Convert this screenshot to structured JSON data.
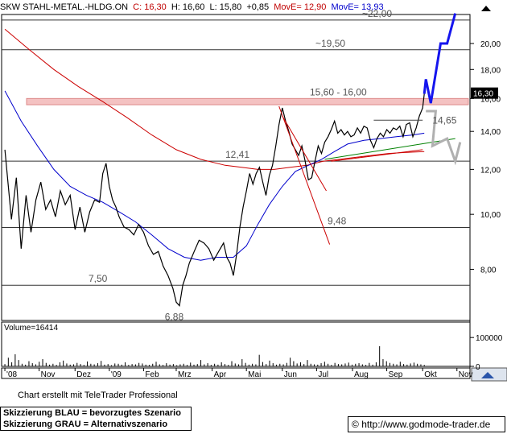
{
  "header": {
    "symbol": "SKW STAHL-METAL.-HLDG.ON",
    "close_label": "C:",
    "close": "16,30",
    "high_label": "H:",
    "high": "16,60",
    "low_label": "L:",
    "low": "15,80",
    "change": "+0,85",
    "ma1_label": "MovE=",
    "ma1": "12,90",
    "ma2_label": "MovE=",
    "ma2": "13,93"
  },
  "footer": {
    "credit": "Chart erstellt mit TeleTrader Professional",
    "legend_blue": "Skizzierung BLAU = bevorzugtes Szenario",
    "legend_grey": "Skizzierung GRAU = Alternativszenario",
    "url": "http://www.godmode-trader.de"
  },
  "colors": {
    "price": "#000000",
    "ma_fast": "#0000cc",
    "ma_slow": "#cc0000",
    "resistance_zone": "#f4c2c2",
    "scenario_blue": "#1515ee",
    "scenario_grey": "#b0b0b0",
    "trend_green": "#008000",
    "trend_red": "#cc0000",
    "hline": "#333333"
  },
  "chart_data": {
    "type": "line",
    "title": "SKW STAHL-METAL.-HLDG.ON",
    "scale": "log",
    "ylim": [
      6.5,
      22.5
    ],
    "y_ticks": [
      8,
      10,
      12,
      14,
      16,
      18,
      20
    ],
    "y_tick_labels": [
      "8,00",
      "10,00",
      "12,00",
      "14,00",
      "16,00",
      "18,00",
      "20,00"
    ],
    "last_price_label": "16,30",
    "x_tick_labels": [
      "'08",
      "Nov",
      "Dez",
      "'09",
      "Feb",
      "Mrz",
      "Apr",
      "Mai",
      "Jun",
      "Jul",
      "Aug",
      "Sep",
      "Okt",
      "Nov"
    ],
    "x_ticks_index": [
      0,
      21,
      43,
      64,
      85,
      105,
      127,
      148,
      170,
      191,
      213,
      234,
      256,
      277
    ],
    "price_series": [
      [
        0,
        13.0
      ],
      [
        4,
        9.8
      ],
      [
        7,
        11.6
      ],
      [
        10,
        8.7
      ],
      [
        13,
        10.8
      ],
      [
        16,
        9.3
      ],
      [
        19,
        10.6
      ],
      [
        22,
        11.4
      ],
      [
        25,
        10.2
      ],
      [
        28,
        10.6
      ],
      [
        31,
        9.9
      ],
      [
        34,
        11.0
      ],
      [
        37,
        10.4
      ],
      [
        40,
        10.8
      ],
      [
        43,
        9.4
      ],
      [
        46,
        10.3
      ],
      [
        49,
        9.3
      ],
      [
        52,
        10.1
      ],
      [
        55,
        10.6
      ],
      [
        58,
        10.5
      ],
      [
        60,
        11.8
      ],
      [
        62,
        12.3
      ],
      [
        64,
        11.2
      ],
      [
        66,
        10.6
      ],
      [
        68,
        10.3
      ],
      [
        70,
        9.9
      ],
      [
        73,
        9.5
      ],
      [
        76,
        9.4
      ],
      [
        79,
        9.2
      ],
      [
        82,
        9.6
      ],
      [
        85,
        9.3
      ],
      [
        88,
        8.8
      ],
      [
        91,
        8.5
      ],
      [
        94,
        8.6
      ],
      [
        97,
        8.1
      ],
      [
        100,
        7.8
      ],
      [
        103,
        7.4
      ],
      [
        105,
        7.0
      ],
      [
        107,
        6.9
      ],
      [
        109,
        7.5
      ],
      [
        111,
        7.8
      ],
      [
        113,
        8.2
      ],
      [
        116,
        8.6
      ],
      [
        119,
        9.0
      ],
      [
        122,
        8.9
      ],
      [
        125,
        8.7
      ],
      [
        128,
        8.3
      ],
      [
        131,
        8.6
      ],
      [
        134,
        8.9
      ],
      [
        136,
        8.4
      ],
      [
        138,
        8.2
      ],
      [
        140,
        7.8
      ],
      [
        142,
        8.5
      ],
      [
        144,
        9.5
      ],
      [
        146,
        10.3
      ],
      [
        148,
        11.0
      ],
      [
        150,
        11.8
      ],
      [
        152,
        11.3
      ],
      [
        154,
        11.8
      ],
      [
        156,
        12.1
      ],
      [
        158,
        11.4
      ],
      [
        160,
        10.8
      ],
      [
        162,
        11.7
      ],
      [
        164,
        12.2
      ],
      [
        166,
        13.2
      ],
      [
        168,
        14.4
      ],
      [
        170,
        15.4
      ],
      [
        172,
        14.6
      ],
      [
        174,
        14.0
      ],
      [
        176,
        13.3
      ],
      [
        178,
        13.0
      ],
      [
        180,
        12.7
      ],
      [
        182,
        13.2
      ],
      [
        184,
        12.4
      ],
      [
        186,
        11.5
      ],
      [
        188,
        11.6
      ],
      [
        190,
        12.4
      ],
      [
        192,
        13.2
      ],
      [
        194,
        12.8
      ],
      [
        196,
        13.4
      ],
      [
        198,
        13.7
      ],
      [
        200,
        14.1
      ],
      [
        202,
        14.6
      ],
      [
        204,
        13.9
      ],
      [
        206,
        14.1
      ],
      [
        208,
        13.8
      ],
      [
        210,
        14.0
      ],
      [
        212,
        13.7
      ],
      [
        214,
        13.8
      ],
      [
        216,
        14.2
      ],
      [
        218,
        13.9
      ],
      [
        220,
        14.3
      ],
      [
        222,
        14.2
      ],
      [
        224,
        13.5
      ],
      [
        226,
        13.1
      ],
      [
        228,
        13.6
      ],
      [
        230,
        13.9
      ],
      [
        232,
        13.7
      ],
      [
        234,
        14.1
      ],
      [
        236,
        13.9
      ],
      [
        238,
        14.2
      ],
      [
        240,
        14.1
      ],
      [
        242,
        14.3
      ],
      [
        244,
        13.7
      ],
      [
        246,
        14.4
      ],
      [
        248,
        14.5
      ],
      [
        250,
        13.7
      ],
      [
        252,
        14.2
      ],
      [
        254,
        14.9
      ],
      [
        256,
        15.4
      ],
      [
        257,
        16.3
      ]
    ],
    "ma_fast_series": [
      [
        0,
        16.5
      ],
      [
        10,
        14.6
      ],
      [
        20,
        13.2
      ],
      [
        30,
        12.0
      ],
      [
        40,
        11.2
      ],
      [
        50,
        10.8
      ],
      [
        60,
        10.5
      ],
      [
        70,
        10.1
      ],
      [
        80,
        9.7
      ],
      [
        90,
        9.2
      ],
      [
        100,
        8.7
      ],
      [
        110,
        8.4
      ],
      [
        120,
        8.3
      ],
      [
        130,
        8.4
      ],
      [
        140,
        8.4
      ],
      [
        148,
        8.8
      ],
      [
        155,
        9.6
      ],
      [
        162,
        10.4
      ],
      [
        170,
        11.2
      ],
      [
        178,
        11.9
      ],
      [
        186,
        12.2
      ],
      [
        194,
        12.5
      ],
      [
        202,
        12.9
      ],
      [
        210,
        13.3
      ],
      [
        220,
        13.5
      ],
      [
        230,
        13.6
      ],
      [
        240,
        13.7
      ],
      [
        250,
        13.8
      ],
      [
        257,
        13.9
      ]
    ],
    "ma_slow_series": [
      [
        0,
        21.2
      ],
      [
        15,
        19.5
      ],
      [
        30,
        18.0
      ],
      [
        45,
        16.8
      ],
      [
        60,
        15.8
      ],
      [
        75,
        14.8
      ],
      [
        90,
        13.8
      ],
      [
        105,
        13.0
      ],
      [
        120,
        12.5
      ],
      [
        135,
        12.2
      ],
      [
        145,
        12.1
      ],
      [
        155,
        12.0
      ],
      [
        165,
        12.0
      ],
      [
        175,
        12.1
      ],
      [
        185,
        12.2
      ],
      [
        195,
        12.4
      ],
      [
        205,
        12.5
      ],
      [
        215,
        12.6
      ],
      [
        225,
        12.7
      ],
      [
        235,
        12.8
      ],
      [
        245,
        12.85
      ],
      [
        257,
        12.9
      ]
    ],
    "volume_ticks": [
      0,
      100000
    ],
    "volume_tick_labels": [
      "0",
      "100000"
    ],
    "volume_label": "Volume=16414",
    "volume_series": [
      8000,
      30000,
      14000,
      42000,
      22000,
      9000,
      6000,
      18000,
      11000,
      7000,
      16000,
      25000,
      12000,
      6000,
      9000,
      5000,
      14000,
      20000,
      10000,
      6000,
      7000,
      12000,
      8000,
      5000,
      17000,
      9000,
      7000,
      11000,
      19000,
      6000,
      8000,
      4000,
      10000,
      9000,
      6000,
      14000,
      5000,
      8000,
      7000,
      12000,
      10000,
      6000,
      5000,
      9000,
      16000,
      7000,
      5000,
      11000,
      6000,
      8000,
      4000,
      7000,
      9000,
      5000,
      13000,
      6000,
      8000,
      22000,
      7000,
      11000,
      5000,
      9000,
      6000,
      14000,
      8000,
      5000,
      18000,
      10000,
      7000,
      25000,
      12000,
      6000,
      9000,
      7000,
      40000,
      15000,
      8000,
      20000,
      11000,
      6000,
      9000,
      7000,
      12000,
      30000,
      18000,
      10000,
      14000,
      8000,
      22000,
      9000,
      7000,
      6000,
      11000,
      16000,
      9000,
      5000,
      12000,
      8000,
      7000,
      10000,
      13000,
      6000,
      9000,
      11000,
      7000,
      5000,
      12000,
      6000,
      14000,
      70000,
      25000,
      18000,
      12000,
      9000,
      7000,
      16000,
      8000,
      6000,
      10000,
      13000,
      9000,
      7000,
      5000
    ],
    "horizontal_levels": [
      {
        "value": 22.0,
        "label": "~22,00"
      },
      {
        "value": 19.5,
        "label": "~19,50"
      },
      {
        "value": 12.41,
        "label": "12,41"
      },
      {
        "value": 9.48,
        "label": "9,48"
      },
      {
        "value": 7.5,
        "label": "7,50"
      }
    ],
    "zone": {
      "low": 15.6,
      "high": 16.0,
      "label": "15,60 - 16,00"
    },
    "annotations": [
      {
        "text": "14,65",
        "x": 262,
        "y": 14.65
      },
      {
        "text": "6,88",
        "x": 98,
        "y": 6.6
      }
    ],
    "trend_lines": [
      {
        "color": "red",
        "points": [
          [
            168,
            15.5
          ],
          [
            199,
            8.85
          ]
        ]
      },
      {
        "color": "red",
        "points": [
          [
            170,
            14.9
          ],
          [
            197,
            11.0
          ]
        ]
      },
      {
        "color": "green",
        "points": [
          [
            196,
            12.5
          ],
          [
            276,
            13.6
          ]
        ]
      },
      {
        "color": "red",
        "points": [
          [
            200,
            12.4
          ],
          [
            256,
            13.0
          ]
        ]
      },
      {
        "color": "black",
        "points": [
          [
            226,
            14.65
          ],
          [
            256,
            14.65
          ]
        ]
      }
    ],
    "scenario_blue": [
      [
        257,
        16.3
      ],
      [
        258,
        17.3
      ],
      [
        261,
        15.7
      ],
      [
        267,
        20.0
      ],
      [
        271,
        20.0
      ],
      [
        276,
        22.6
      ]
    ],
    "scenario_grey": [
      [
        258,
        15.2
      ],
      [
        264,
        15.2
      ],
      [
        262,
        13.2
      ],
      [
        271,
        13.6
      ],
      [
        276,
        12.4
      ],
      [
        279,
        13.4
      ]
    ],
    "x_range": [
      -2,
      285
    ]
  }
}
